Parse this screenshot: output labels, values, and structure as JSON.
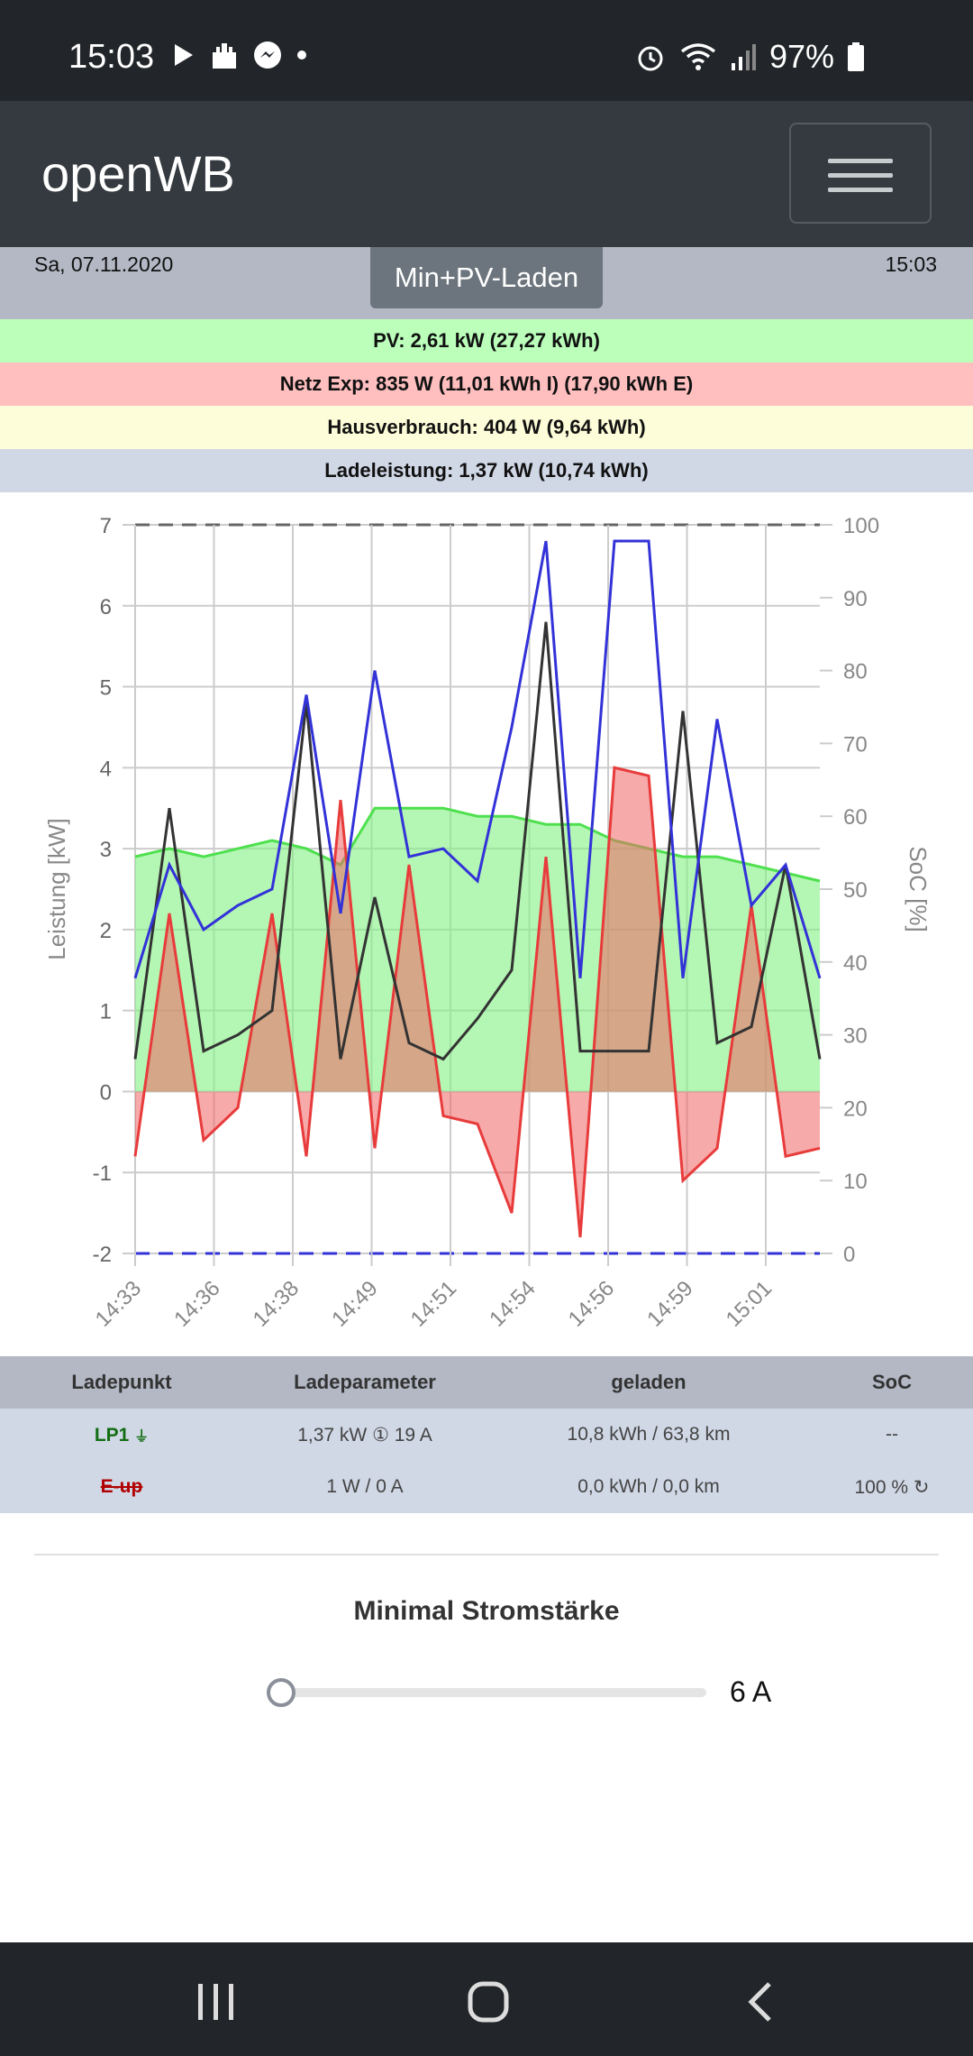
{
  "status_bar": {
    "time": "15:03",
    "battery": "97%"
  },
  "app": {
    "brand": "openWB"
  },
  "header": {
    "date": "Sa, 07.11.2020",
    "time": "15:03",
    "mode_button": "Min+PV-Laden"
  },
  "info": {
    "pv": "PV: 2,61 kW (27,27 kWh)",
    "netz": "Netz Exp: 835 W (11,01 kWh I) (17,90 kWh E)",
    "haus": "Hausverbrauch: 404 W (9,64 kWh)",
    "lade": "Ladeleistung: 1,37 kW (10,74 kWh)"
  },
  "colors": {
    "pv": "#bbffbb",
    "netz": "#ffbfbf",
    "haus": "#fefdd9",
    "lade": "#d0d7e5",
    "pv_line": "#4ee04e",
    "grid_line": "#e83b3b",
    "house_line": "#333333",
    "charge_line": "#3232d8"
  },
  "chart_data": {
    "type": "line",
    "ylabel": "Leistung [kW]",
    "y2label": "SoC [%]",
    "ylim": [
      -2,
      7
    ],
    "y2lim": [
      0,
      100
    ],
    "yticks": [
      "7",
      "6",
      "5",
      "4",
      "3",
      "2",
      "1",
      "0",
      "-1",
      "-2"
    ],
    "y2ticks": [
      "100",
      "90",
      "80",
      "70",
      "60",
      "50",
      "40",
      "30",
      "20",
      "10",
      "0"
    ],
    "xticks": [
      "14:33",
      "14:36",
      "14:38",
      "14:49",
      "14:51",
      "14:54",
      "14:56",
      "14:59",
      "15:01"
    ],
    "series": [
      {
        "name": "PV",
        "color": "#4ee04e",
        "values": [
          2.9,
          3.0,
          2.9,
          3.0,
          3.1,
          3.0,
          2.8,
          3.5,
          3.5,
          3.5,
          3.4,
          3.4,
          3.3,
          3.3,
          3.1,
          3.0,
          2.9,
          2.9,
          2.8,
          2.7,
          2.6
        ]
      },
      {
        "name": "Netz",
        "color": "#e83b3b",
        "values": [
          -0.8,
          2.2,
          -0.6,
          -0.2,
          2.2,
          -0.8,
          3.6,
          -0.7,
          2.8,
          -0.3,
          -0.4,
          -1.5,
          2.9,
          -1.8,
          4.0,
          3.9,
          -1.1,
          -0.7,
          2.3,
          -0.8,
          -0.7
        ]
      },
      {
        "name": "Haus",
        "color": "#333333",
        "values": [
          0.4,
          3.5,
          0.5,
          0.7,
          1.0,
          4.8,
          0.4,
          2.4,
          0.6,
          0.4,
          0.9,
          1.5,
          5.8,
          0.5,
          0.5,
          0.5,
          4.7,
          0.6,
          0.8,
          2.8,
          0.4
        ]
      },
      {
        "name": "Ladeleistung",
        "color": "#3232d8",
        "values": [
          1.4,
          2.8,
          2.0,
          2.3,
          2.5,
          4.9,
          2.2,
          5.2,
          2.9,
          3.0,
          2.6,
          4.5,
          6.8,
          1.4,
          6.8,
          6.8,
          1.4,
          4.6,
          2.3,
          2.8,
          1.4
        ]
      }
    ]
  },
  "table": {
    "headers": [
      "Ladepunkt",
      "Ladeparameter",
      "geladen",
      "SoC"
    ],
    "rows": [
      {
        "name": "LP1",
        "param": "1,37 kW ① 19 A",
        "loaded": "10,8 kWh / 63,8 km",
        "soc": "--"
      },
      {
        "name": "E-up",
        "param": "1 W / 0 A",
        "loaded": "0,0 kWh / 0,0 km",
        "soc": "100 %"
      }
    ]
  },
  "min_current": {
    "title": "Minimal Stromstärke",
    "value": "6 A"
  }
}
